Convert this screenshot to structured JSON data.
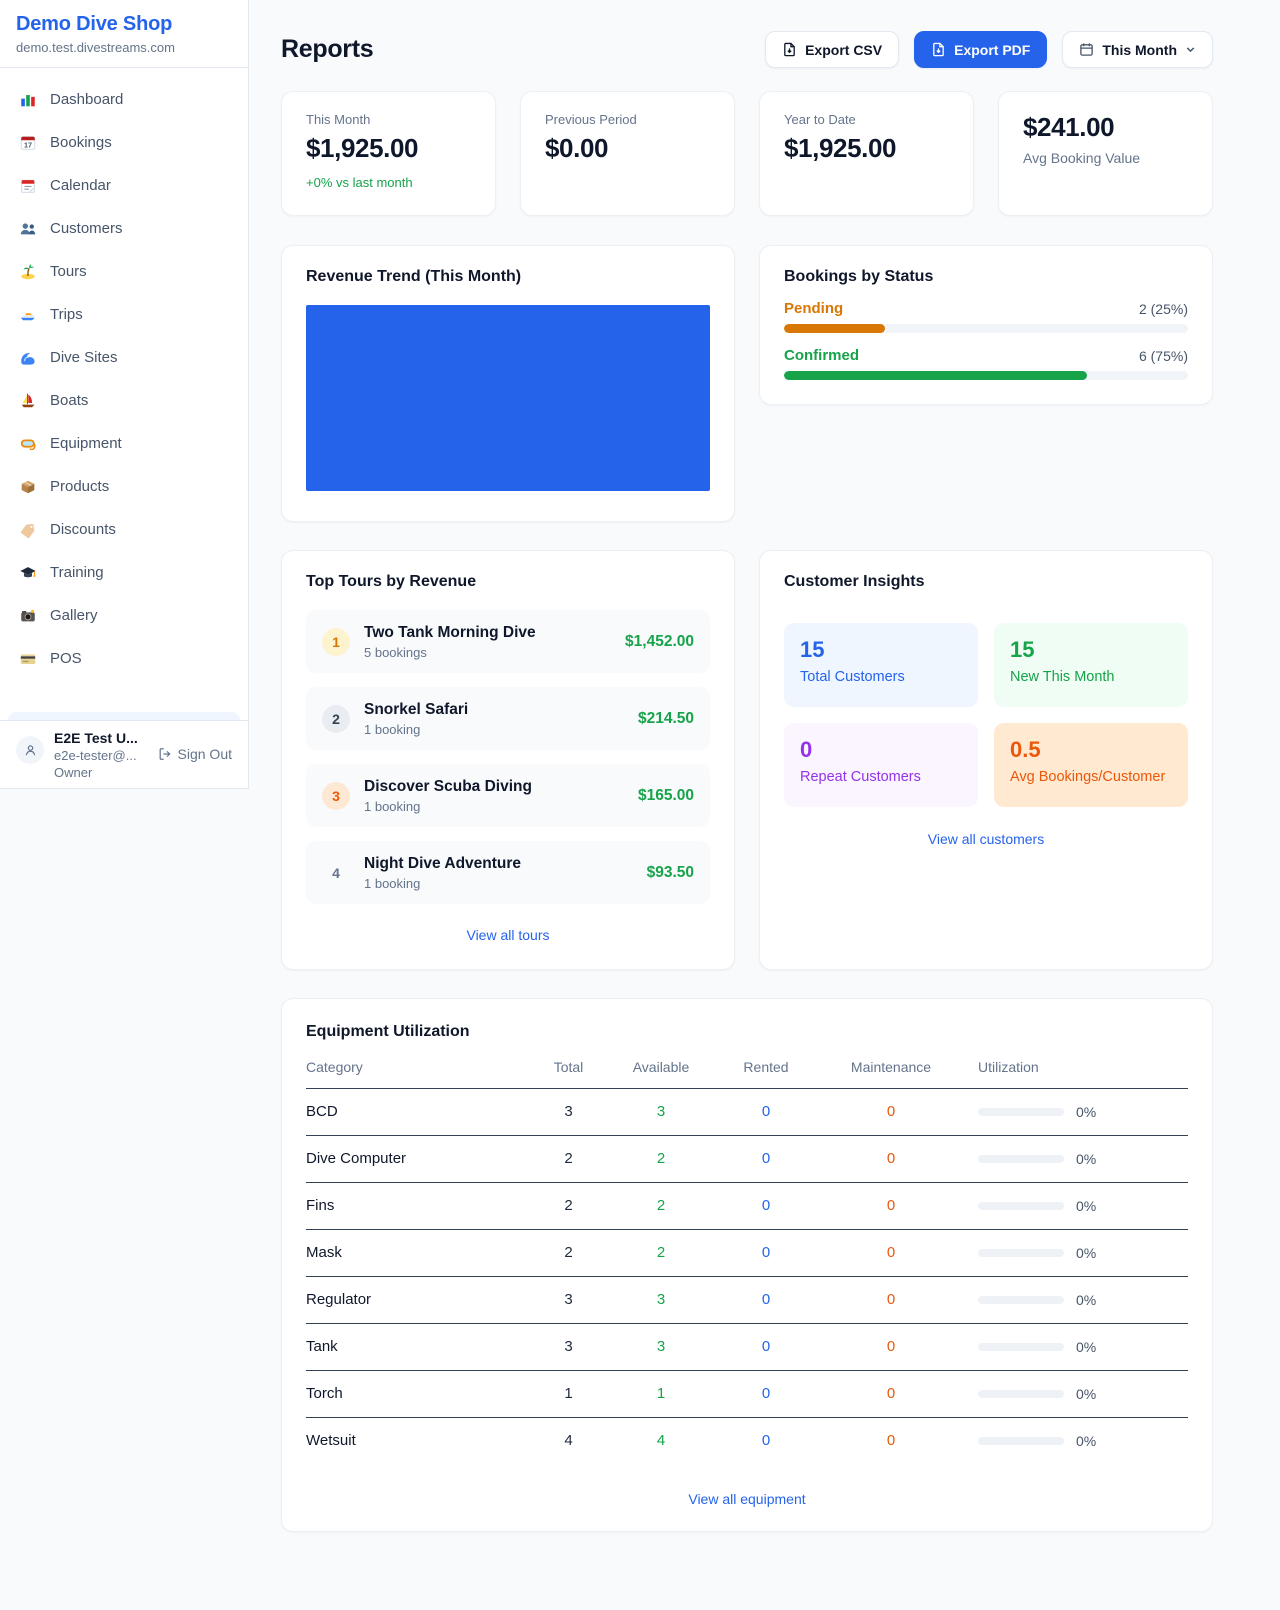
{
  "colors": {
    "accent": "#2563eb",
    "success": "#16a34a",
    "pending": "#d97706",
    "maintenance": "#ea580c",
    "purple": "#9333ea",
    "chart_bar": "#2563eb"
  },
  "sidebar": {
    "shop_name": "Demo Dive Shop",
    "domain": "demo.test.divestreams.com",
    "items": [
      {
        "icon": "bar-chart",
        "label": "Dashboard"
      },
      {
        "icon": "calendar-date",
        "label": "Bookings"
      },
      {
        "icon": "tear-off-calendar",
        "label": "Calendar"
      },
      {
        "icon": "people",
        "label": "Customers"
      },
      {
        "icon": "desert-island",
        "label": "Tours"
      },
      {
        "icon": "speedboat",
        "label": "Trips"
      },
      {
        "icon": "water-wave",
        "label": "Dive Sites"
      },
      {
        "icon": "sailboat",
        "label": "Boats"
      },
      {
        "icon": "diving-mask",
        "label": "Equipment"
      },
      {
        "icon": "package",
        "label": "Products"
      },
      {
        "icon": "label-tag",
        "label": "Discounts"
      },
      {
        "icon": "graduation-cap",
        "label": "Training"
      },
      {
        "icon": "camera",
        "label": "Gallery"
      },
      {
        "icon": "credit-card",
        "label": "POS"
      }
    ],
    "user": {
      "name": "E2E Test U...",
      "email": "e2e-tester@...",
      "role": "Owner",
      "sign_out_label": "Sign Out"
    }
  },
  "header": {
    "title": "Reports",
    "export_csv_label": "Export CSV",
    "export_pdf_label": "Export PDF",
    "period_label": "This Month"
  },
  "stats": [
    {
      "label": "This Month",
      "value": "$1,925.00",
      "delta": "+0% vs last month"
    },
    {
      "label": "Previous Period",
      "value": "$0.00"
    },
    {
      "label": "Year to Date",
      "value": "$1,925.00"
    },
    {
      "label": "Avg Booking Value",
      "value": "$241.00"
    }
  ],
  "revenue_trend": {
    "title": "Revenue Trend (This Month)",
    "bar_color": "#2563eb"
  },
  "bookings_by_status": {
    "title": "Bookings by Status",
    "rows": [
      {
        "label": "Pending",
        "value": "2 (25%)",
        "pct": 25,
        "color": "#d97706"
      },
      {
        "label": "Confirmed",
        "value": "6 (75%)",
        "pct": 75,
        "color": "#16a34a"
      }
    ]
  },
  "top_tours": {
    "title": "Top Tours by Revenue",
    "link_label": "View all tours",
    "rows": [
      {
        "rank": "1",
        "name": "Two Tank Morning Dive",
        "bookings": "5 bookings",
        "amount": "$1,452.00"
      },
      {
        "rank": "2",
        "name": "Snorkel Safari",
        "bookings": "1 booking",
        "amount": "$214.50"
      },
      {
        "rank": "3",
        "name": "Discover Scuba Diving",
        "bookings": "1 booking",
        "amount": "$165.00"
      },
      {
        "rank": "4",
        "name": "Night Dive Adventure",
        "bookings": "1 booking",
        "amount": "$93.50"
      }
    ]
  },
  "customer_insights": {
    "title": "Customer Insights",
    "link_label": "View all customers",
    "boxes": [
      {
        "value": "15",
        "label": "Total Customers"
      },
      {
        "value": "15",
        "label": "New This Month"
      },
      {
        "value": "0",
        "label": "Repeat Customers"
      },
      {
        "value": "0.5",
        "label": "Avg Bookings/Customer"
      }
    ]
  },
  "equipment": {
    "title": "Equipment Utilization",
    "link_label": "View all equipment",
    "columns": [
      "Category",
      "Total",
      "Available",
      "Rented",
      "Maintenance",
      "Utilization"
    ],
    "rows": [
      {
        "category": "BCD",
        "total": "3",
        "available": "3",
        "rented": "0",
        "maintenance": "0",
        "utilization": "0%",
        "utilization_pct": 0
      },
      {
        "category": "Dive Computer",
        "total": "2",
        "available": "2",
        "rented": "0",
        "maintenance": "0",
        "utilization": "0%",
        "utilization_pct": 0
      },
      {
        "category": "Fins",
        "total": "2",
        "available": "2",
        "rented": "0",
        "maintenance": "0",
        "utilization": "0%",
        "utilization_pct": 0
      },
      {
        "category": "Mask",
        "total": "2",
        "available": "2",
        "rented": "0",
        "maintenance": "0",
        "utilization": "0%",
        "utilization_pct": 0
      },
      {
        "category": "Regulator",
        "total": "3",
        "available": "3",
        "rented": "0",
        "maintenance": "0",
        "utilization": "0%",
        "utilization_pct": 0
      },
      {
        "category": "Tank",
        "total": "3",
        "available": "3",
        "rented": "0",
        "maintenance": "0",
        "utilization": "0%",
        "utilization_pct": 0
      },
      {
        "category": "Torch",
        "total": "1",
        "available": "1",
        "rented": "0",
        "maintenance": "0",
        "utilization": "0%",
        "utilization_pct": 0
      },
      {
        "category": "Wetsuit",
        "total": "4",
        "available": "4",
        "rented": "0",
        "maintenance": "0",
        "utilization": "0%",
        "utilization_pct": 0
      }
    ]
  }
}
